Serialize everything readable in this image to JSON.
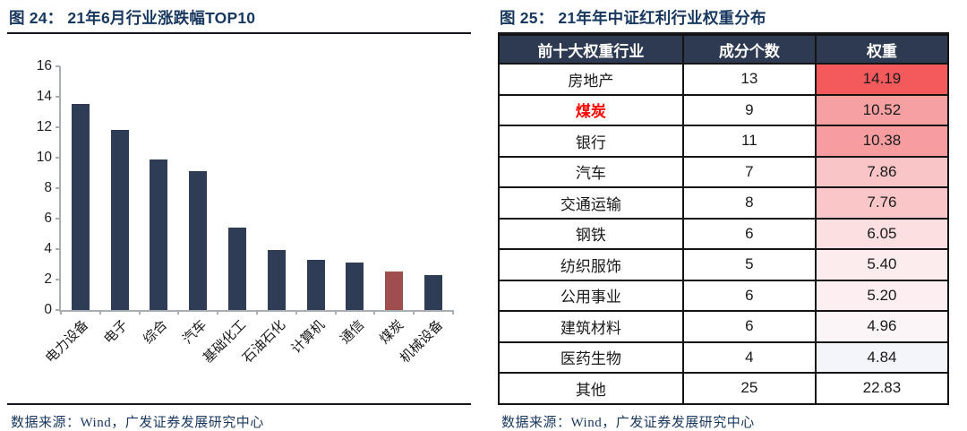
{
  "colors": {
    "title_navy": "#17375e",
    "bar_default": "#2e3c55",
    "bar_highlight": "#9e4f4d",
    "table_header_bg": "#2e3a52",
    "highlight_text_red": "#fe0000",
    "axis_gray": "#a9adb4"
  },
  "left_panel": {
    "title": "图 24： 21年6月行业涨跌幅TOP10",
    "source": "数据来源：Wind，广发证券发展研究中心"
  },
  "right_panel": {
    "title": "图 25： 21年年中证红利行业权重分布",
    "source": "数据来源：Wind，广发证券发展研究中心",
    "table": {
      "headers": [
        "前十大权重行业",
        "成分个数",
        "权重"
      ],
      "rows": [
        {
          "industry": "房地产",
          "count": "13",
          "weight": "14.19",
          "weight_bg": "#f4595c",
          "highlight": false
        },
        {
          "industry": "煤炭",
          "count": "9",
          "weight": "10.52",
          "weight_bg": "#f7a0a2",
          "highlight": true
        },
        {
          "industry": "银行",
          "count": "11",
          "weight": "10.38",
          "weight_bg": "#f79da0",
          "highlight": false
        },
        {
          "industry": "汽车",
          "count": "7",
          "weight": "7.86",
          "weight_bg": "#fac5c7",
          "highlight": false
        },
        {
          "industry": "交通运输",
          "count": "8",
          "weight": "7.76",
          "weight_bg": "#fac6c8",
          "highlight": false
        },
        {
          "industry": "钢铁",
          "count": "6",
          "weight": "6.05",
          "weight_bg": "#fcdfe1",
          "highlight": false
        },
        {
          "industry": "纺织服饰",
          "count": "5",
          "weight": "5.40",
          "weight_bg": "#fdecee",
          "highlight": false
        },
        {
          "industry": "公用事业",
          "count": "6",
          "weight": "5.20",
          "weight_bg": "#fdeff1",
          "highlight": false
        },
        {
          "industry": "建筑材料",
          "count": "6",
          "weight": "4.96",
          "weight_bg": "#fbf5f7",
          "highlight": false
        },
        {
          "industry": "医药生物",
          "count": "4",
          "weight": "4.84",
          "weight_bg": "#f4f4fb",
          "highlight": false
        },
        {
          "industry": "其他",
          "count": "25",
          "weight": "22.83",
          "weight_bg": "#ffffff",
          "highlight": false
        }
      ]
    }
  },
  "chart_data": [
    {
      "type": "bar",
      "title": "21年6月行业涨跌幅TOP10",
      "categories": [
        "电力设备",
        "电子",
        "综合",
        "汽车",
        "基础化工",
        "石油石化",
        "计算机",
        "通信",
        "煤炭",
        "机械设备"
      ],
      "values": [
        13.5,
        11.8,
        9.9,
        9.1,
        5.4,
        3.9,
        3.3,
        3.1,
        2.5,
        2.3
      ],
      "highlight_index": 8,
      "highlight_category": "煤炭",
      "xlabel": "",
      "ylabel": "",
      "ylim": [
        0,
        16
      ],
      "yticks": [
        0,
        2,
        4,
        6,
        8,
        10,
        12,
        14,
        16
      ],
      "grid": false,
      "legend": false
    },
    {
      "type": "table",
      "title": "21年年中证红利行业权重分布",
      "columns": [
        "前十大权重行业",
        "成分个数",
        "权重"
      ],
      "rows": [
        [
          "房地产",
          13,
          14.19
        ],
        [
          "煤炭",
          9,
          10.52
        ],
        [
          "银行",
          11,
          10.38
        ],
        [
          "汽车",
          7,
          7.86
        ],
        [
          "交通运输",
          8,
          7.76
        ],
        [
          "钢铁",
          6,
          6.05
        ],
        [
          "纺织服饰",
          5,
          5.4
        ],
        [
          "公用事业",
          6,
          5.2
        ],
        [
          "建筑材料",
          6,
          4.96
        ],
        [
          "医药生物",
          4,
          4.84
        ],
        [
          "其他",
          25,
          22.83
        ]
      ]
    }
  ]
}
